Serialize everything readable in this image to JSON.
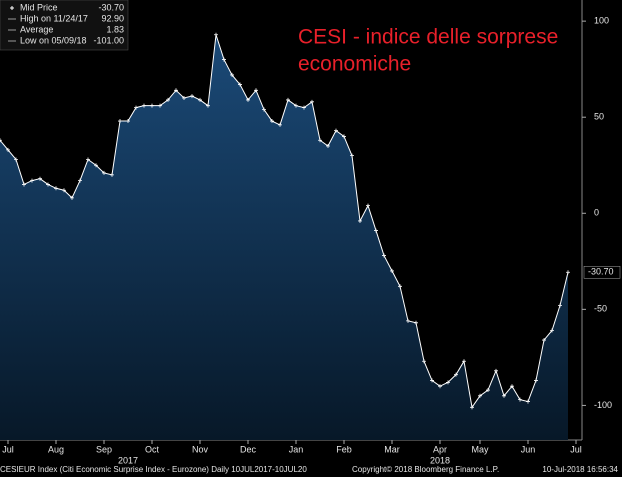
{
  "chart_data": {
    "type": "area",
    "title_lines": [
      "CESI - indice delle sorprese",
      "economiche"
    ],
    "title_color": "#e8202a",
    "legend": [
      {
        "name": "Mid Price",
        "value": "-30.70"
      },
      {
        "name": "High on 11/24/17",
        "value": "92.90"
      },
      {
        "name": "Average",
        "value": "1.83"
      },
      {
        "name": "Low on 05/09/18",
        "value": "-101.00"
      }
    ],
    "last_value_label": "-30.70",
    "categories": [
      null,
      "Jul",
      null,
      null,
      null,
      null,
      null,
      "Aug",
      null,
      null,
      null,
      null,
      null,
      "Sep",
      null,
      null,
      null,
      null,
      null,
      "Oct",
      null,
      null,
      null,
      null,
      null,
      "Nov",
      null,
      null,
      null,
      null,
      null,
      "Dec",
      null,
      null,
      null,
      null,
      null,
      "Jan",
      null,
      null,
      null,
      null,
      null,
      "Feb",
      null,
      null,
      null,
      null,
      null,
      "Mar",
      null,
      null,
      null,
      null,
      null,
      "Apr",
      null,
      null,
      null,
      null,
      "May",
      null,
      null,
      null,
      null,
      null,
      "Jun",
      null,
      null,
      null,
      null,
      null,
      "Jul"
    ],
    "year_categories": [
      null,
      null,
      null,
      null,
      null,
      null,
      null,
      null,
      null,
      null,
      null,
      null,
      null,
      null,
      null,
      null,
      "2017",
      null,
      null,
      null,
      null,
      null,
      null,
      null,
      null,
      null,
      null,
      null,
      null,
      null,
      null,
      null,
      null,
      null,
      null,
      null,
      null,
      null,
      null,
      null,
      null,
      null,
      null,
      null,
      null,
      null,
      null,
      null,
      null,
      null,
      null,
      null,
      null,
      null,
      null,
      "2018",
      null,
      null,
      null,
      null,
      null,
      null,
      null,
      null,
      null,
      null,
      null,
      null,
      null,
      null,
      null,
      null,
      null
    ],
    "series": [
      {
        "name": "Mid Price",
        "color": "#ffffff",
        "fill": "#123a63",
        "values": [
          38,
          33,
          28,
          15,
          17,
          18,
          15,
          13,
          12,
          8,
          17,
          28,
          25,
          21,
          20,
          48,
          48,
          55,
          56,
          56,
          56,
          59,
          64,
          60,
          61,
          59,
          56,
          92.9,
          80,
          72,
          67,
          59,
          64,
          54,
          48,
          46,
          59,
          56,
          55,
          58,
          38,
          35,
          43,
          40,
          30,
          -4,
          4,
          -9,
          -22,
          -30,
          -38,
          -56,
          -57,
          -77,
          -87,
          -90,
          -88,
          -84,
          -77,
          -101,
          -95,
          -92,
          -82,
          -95,
          -90,
          -97,
          -98,
          -87,
          -66,
          -61,
          -48,
          -30.7,
          null
        ]
      }
    ],
    "ylim": [
      -118,
      111
    ],
    "yticks": [
      100,
      50,
      0,
      -50,
      -100
    ],
    "grid": false,
    "footer": [
      "CESIEUR Index (Citi Economic Surprise Index - Eurozone)  Daily 10JUL2017-10JUL20",
      "Copyright© 2018 Bloomberg Finance L.P.",
      "10-Jul-2018 16:56:34"
    ]
  }
}
